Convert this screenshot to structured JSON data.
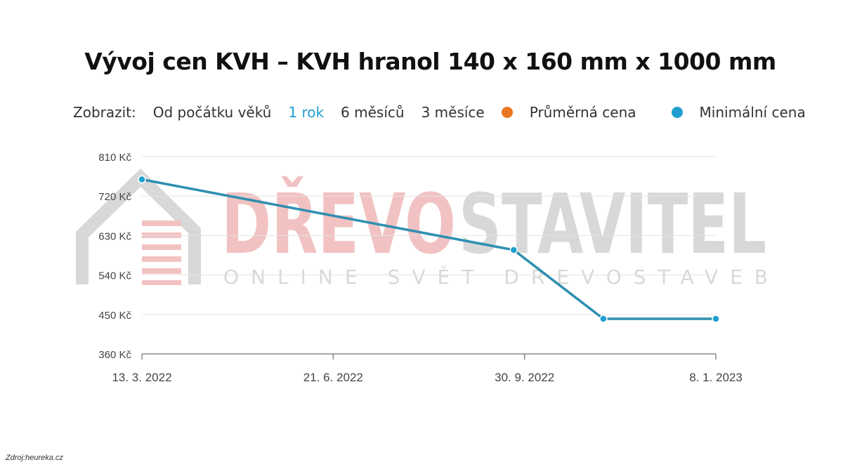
{
  "chart_data": {
    "type": "line",
    "title": "Vývoj cen KVH – KVH hranol 140 x 160 mm x 1000 mm",
    "controls": {
      "label": "Zobrazit:",
      "ranges": [
        "Od počátku věků",
        "1 rok",
        "6 měsíců",
        "3 měsíce"
      ],
      "active_range": "1 rok"
    },
    "legend": [
      {
        "name": "Průměrná cena",
        "color": "#e8761e"
      },
      {
        "name": "Minimální cena",
        "color": "#1f9fd0"
      }
    ],
    "x_ticks": [
      "13. 3. 2022",
      "21. 6. 2022",
      "30. 9. 2022",
      "8. 1. 2023"
    ],
    "y_ticks": [
      "810 Kč",
      "720 Kč",
      "630 Kč",
      "540 Kč",
      "450 Kč",
      "360 Kč"
    ],
    "ylim": [
      360,
      810
    ],
    "xlim": [
      "2022-03-13",
      "2023-01-08"
    ],
    "grid": true,
    "series": [
      {
        "name": "Minimální cena",
        "color": "#2e8fb0",
        "points": [
          {
            "x": "2022-03-13",
            "y": 758
          },
          {
            "x": "2022-09-24",
            "y": 597
          },
          {
            "x": "2022-11-10",
            "y": 440
          },
          {
            "x": "2023-01-08",
            "y": 440
          }
        ]
      }
    ]
  },
  "watermark": {
    "brand_red": "DŘEVO",
    "brand_gray": "STAVITEL",
    "tagline": "ONLINE SVĚT DŘEVOSTAVEB"
  },
  "source": "Zdroj:heureka.cz"
}
